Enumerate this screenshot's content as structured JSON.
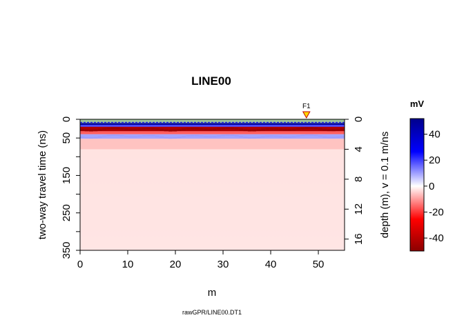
{
  "chart_data": {
    "type": "heatmap",
    "title": "LINE00",
    "xlabel": "m",
    "ylabel_left": "two-way travel time (ns)",
    "ylabel_right": "depth (m),   v = 0.1 m/ns",
    "caption": "rawGPR/LINE00.DT1",
    "xlim": [
      0,
      55.5
    ],
    "ylim_time": [
      0,
      350
    ],
    "ylim_depth": [
      0,
      17.5
    ],
    "x_ticks": [
      0,
      10,
      20,
      30,
      40,
      50
    ],
    "y_ticks_time_major": [
      0,
      50,
      150,
      250,
      350
    ],
    "y_ticks_time_minor": [
      100,
      200,
      300
    ],
    "y_ticks_depth": [
      0,
      4,
      8,
      12,
      16
    ],
    "marker": {
      "label": "F1",
      "x": 47.5,
      "color": "#ffd700"
    },
    "colorbar": {
      "unit": "mV",
      "range": [
        -50,
        52
      ],
      "ticks": [
        40,
        20,
        0,
        -20,
        -40
      ],
      "colors": [
        "#00008b",
        "#0000ff",
        "#ffffff",
        "#ff0000",
        "#8b0000"
      ]
    },
    "bands": [
      {
        "t": [
          0,
          10
        ],
        "value": -20,
        "note": "light greenish top strip"
      },
      {
        "t": [
          10,
          15
        ],
        "value": 48
      },
      {
        "t": [
          15,
          20
        ],
        "value": 20
      },
      {
        "t": [
          20,
          32
        ],
        "value": -42
      },
      {
        "t": [
          32,
          40
        ],
        "value": -15
      },
      {
        "t": [
          40,
          52
        ],
        "value": 10
      },
      {
        "t": [
          52,
          80
        ],
        "value": -6
      },
      {
        "t": [
          80,
          350
        ],
        "value": -2
      }
    ]
  }
}
